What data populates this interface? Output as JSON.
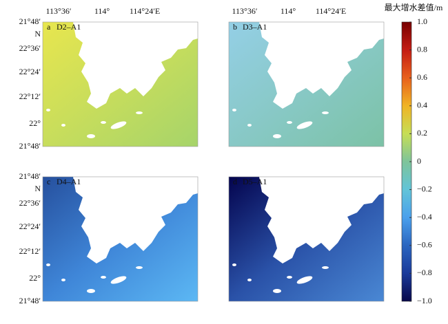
{
  "panels": [
    {
      "label": "a",
      "title": "D2–A1"
    },
    {
      "label": "b",
      "title": "D3–A1"
    },
    {
      "label": "c",
      "title": "D4–A1"
    },
    {
      "label": "d",
      "title": "D5–A1"
    }
  ],
  "x_labels": [
    "113°36′",
    "114°",
    "114°24′E"
  ],
  "y_labels": [
    "21°48′",
    "N",
    "22°36′",
    "22°24′",
    "22°12′",
    "22°",
    "21°48′"
  ],
  "colorbar": {
    "title": "最大增水差值/m",
    "range": [
      -1,
      1
    ],
    "ticks": [
      {
        "value": 1,
        "label": "1.0"
      },
      0.8,
      0.6,
      0.4,
      0.2,
      0,
      {
        "value": -0.2,
        "label": "−0.2"
      },
      {
        "value": -0.4,
        "label": "−0.4"
      },
      {
        "value": -0.6,
        "label": "−0.6"
      },
      {
        "value": -0.8,
        "label": "−0.8"
      },
      {
        "value": -1,
        "label": "−1.0"
      }
    ]
  }
}
